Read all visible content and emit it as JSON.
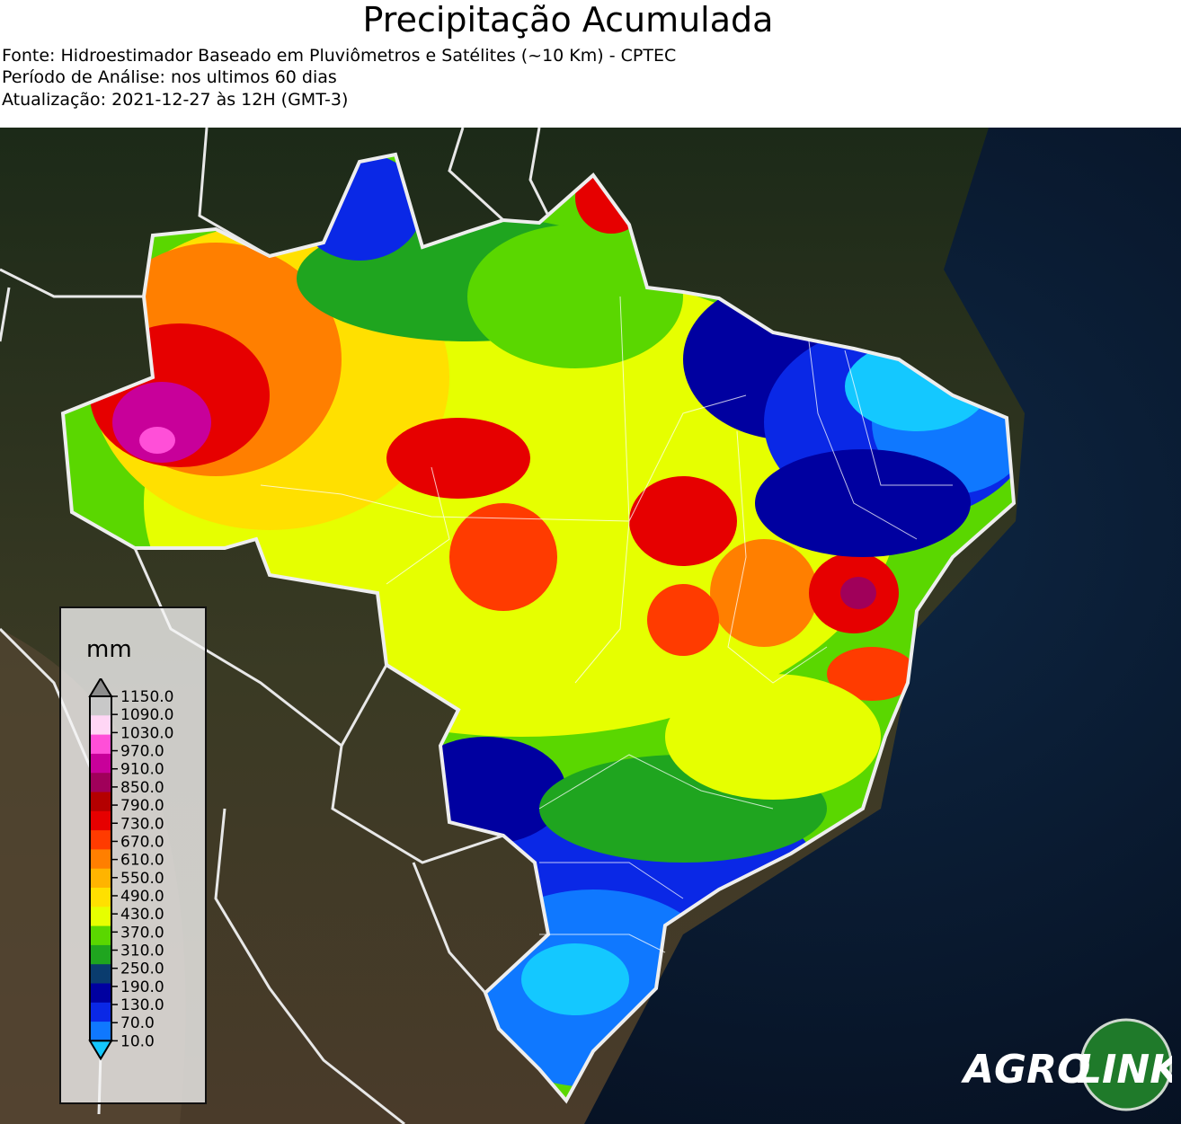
{
  "header": {
    "title": "Precipitação Acumulada",
    "source": "Fonte: Hidroestimador Baseado em Pluviômetros e Satélites (~10 Km) - CPTEC",
    "period": "Período de Análise: nos ultimos 60 dias",
    "updated": "Atualização: 2021-12-27 às 12H (GMT-3)"
  },
  "legend": {
    "unit": "mm",
    "ticks": [
      "1150.0",
      "1090.0",
      "1030.0",
      "970.0",
      "910.0",
      "850.0",
      "790.0",
      "730.0",
      "670.0",
      "610.0",
      "550.0",
      "490.0",
      "430.0",
      "370.0",
      "310.0",
      "250.0",
      "190.0",
      "130.0",
      "70.0",
      "10.0"
    ],
    "colors": [
      "#8c8c8c",
      "#c8c8c8",
      "#ffd6f5",
      "#ff4fd8",
      "#c8009a",
      "#a0005a",
      "#b40000",
      "#e60000",
      "#ff3b00",
      "#ff7f00",
      "#ffb400",
      "#ffe000",
      "#e6ff00",
      "#5ad700",
      "#1fa51f",
      "#0a3c6e",
      "#0000a0",
      "#0a28e6",
      "#0f78ff",
      "#14c8ff"
    ]
  },
  "logo": {
    "text_left": "AGRO",
    "text_right": "LINK"
  }
}
